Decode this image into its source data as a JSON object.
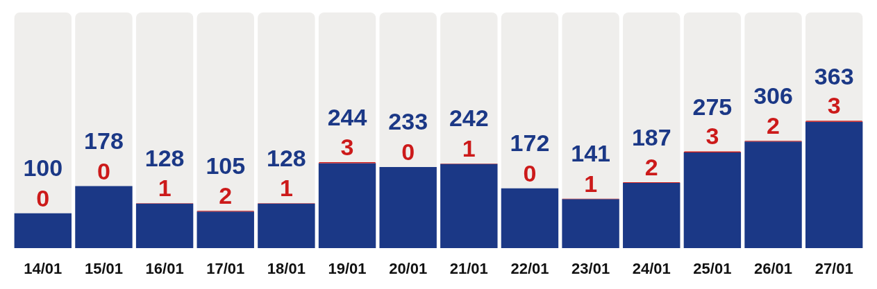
{
  "chart_data": {
    "type": "bar",
    "stacked": true,
    "data_labels": true,
    "categories": [
      "14/01",
      "15/01",
      "16/01",
      "17/01",
      "18/01",
      "19/01",
      "20/01",
      "21/01",
      "22/01",
      "23/01",
      "24/01",
      "25/01",
      "26/01",
      "27/01"
    ],
    "series": [
      {
        "color": "#1b3886",
        "values": [
          100,
          178,
          128,
          105,
          128,
          244,
          233,
          242,
          172,
          141,
          187,
          275,
          306,
          363
        ]
      },
      {
        "color": "#cc1a1a",
        "values": [
          0,
          0,
          1,
          2,
          1,
          3,
          0,
          1,
          0,
          1,
          2,
          3,
          2,
          3
        ]
      }
    ]
  }
}
